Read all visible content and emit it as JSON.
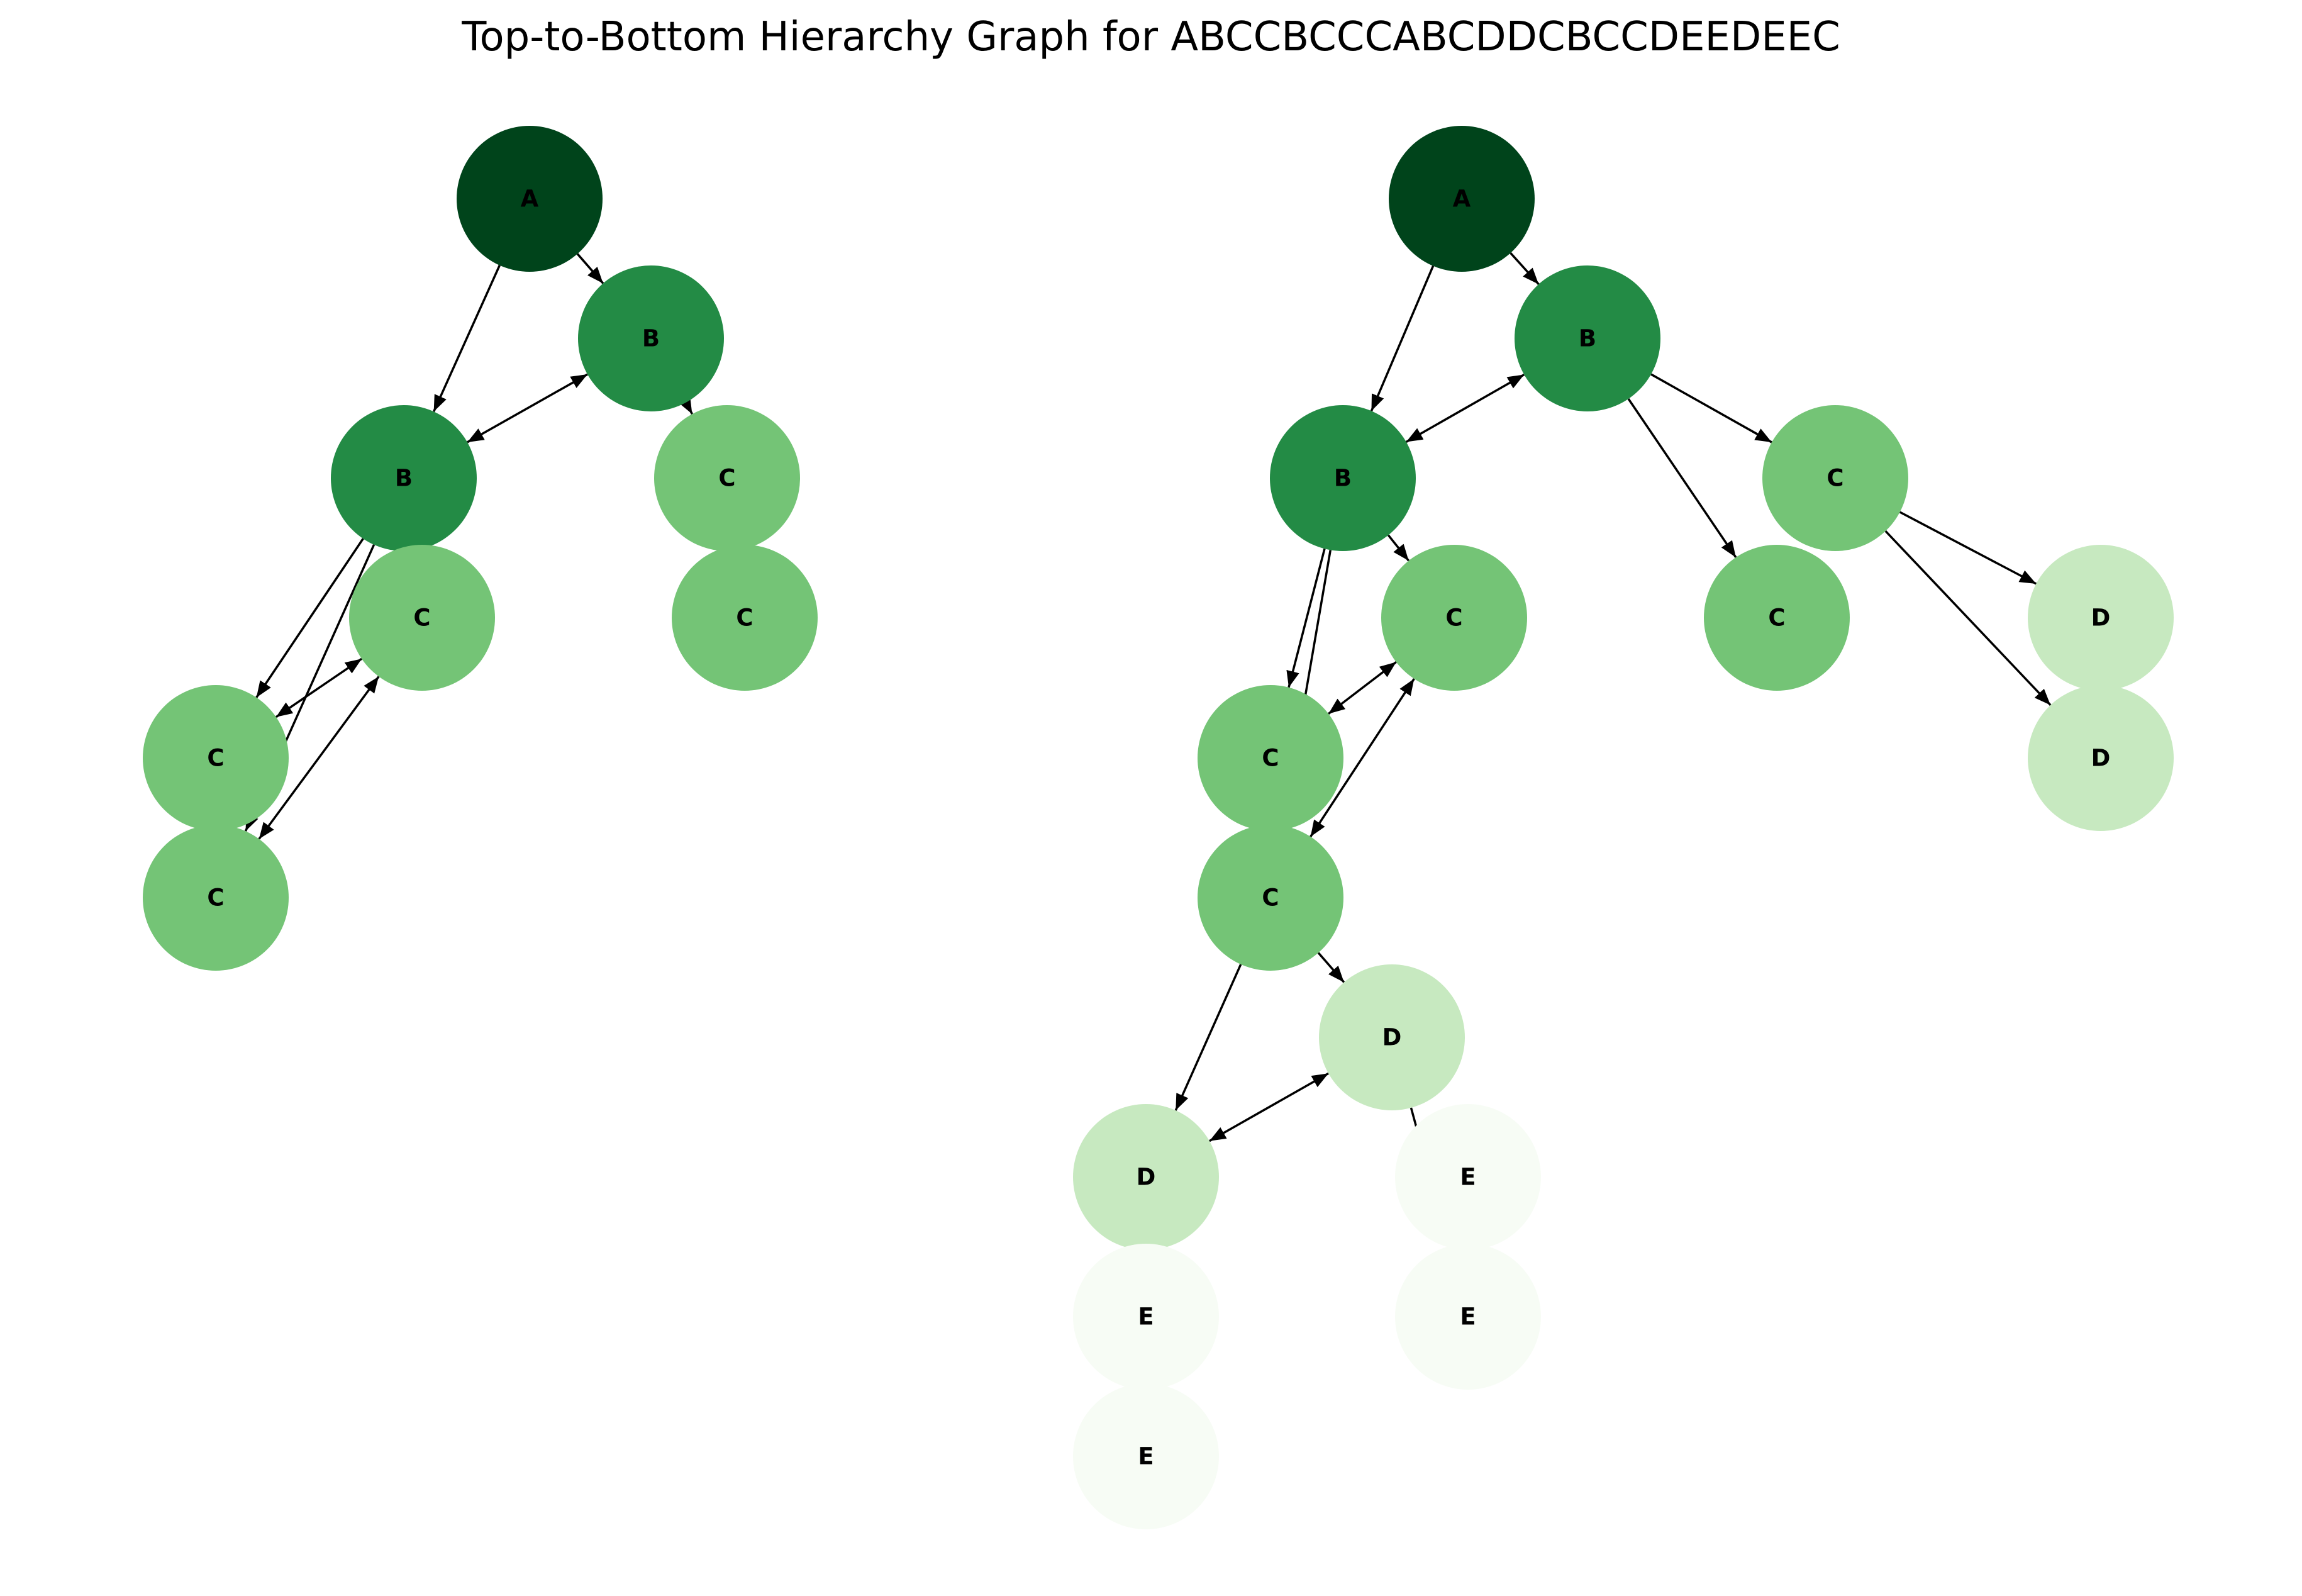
{
  "title": "Top-to-Bottom Hierarchy Graph for ABCCBCCCABCDDCBCCDEEDEEC",
  "colors": {
    "A": "#00441b",
    "B": "#238b45",
    "C": "#74c476",
    "D": "#c7e9c0",
    "E": "#f7fcf5",
    "edge": "#000000",
    "background": "#ffffff"
  },
  "graphs": [
    {
      "name": "left-graph",
      "nodes": [
        {
          "id": "L_A",
          "label": "A"
        },
        {
          "id": "L_B1",
          "label": "B"
        },
        {
          "id": "L_B2",
          "label": "B"
        },
        {
          "id": "L_C1",
          "label": "C"
        },
        {
          "id": "L_C2",
          "label": "C"
        },
        {
          "id": "L_C3",
          "label": "C"
        },
        {
          "id": "L_C4",
          "label": "C"
        },
        {
          "id": "L_C5",
          "label": "C"
        }
      ],
      "edges": [
        {
          "from": "L_A",
          "to": "L_B1",
          "bidirectional": false
        },
        {
          "from": "L_A",
          "to": "L_B2",
          "bidirectional": false
        },
        {
          "from": "L_B2",
          "to": "L_B1",
          "bidirectional": true
        },
        {
          "from": "L_B1",
          "to": "L_C1",
          "bidirectional": false
        },
        {
          "from": "L_B2",
          "to": "L_C4",
          "bidirectional": false
        },
        {
          "from": "L_B2",
          "to": "L_C5",
          "bidirectional": false
        },
        {
          "from": "L_C4",
          "to": "L_C3",
          "bidirectional": true
        },
        {
          "from": "L_C5",
          "to": "L_C3",
          "bidirectional": true
        }
      ]
    },
    {
      "name": "right-graph",
      "nodes": [
        {
          "id": "R_A",
          "label": "A"
        },
        {
          "id": "R_B1",
          "label": "B"
        },
        {
          "id": "R_B2",
          "label": "B"
        },
        {
          "id": "R_C1",
          "label": "C"
        },
        {
          "id": "R_C2",
          "label": "C"
        },
        {
          "id": "R_C3",
          "label": "C"
        },
        {
          "id": "R_C4",
          "label": "C"
        },
        {
          "id": "R_C5",
          "label": "C"
        },
        {
          "id": "R_D1",
          "label": "D"
        },
        {
          "id": "R_D2",
          "label": "D"
        },
        {
          "id": "R_D3",
          "label": "D"
        },
        {
          "id": "R_D4",
          "label": "D"
        },
        {
          "id": "R_E1",
          "label": "E"
        },
        {
          "id": "R_E2",
          "label": "E"
        },
        {
          "id": "R_E3",
          "label": "E"
        },
        {
          "id": "R_E4",
          "label": "E"
        }
      ],
      "edges": [
        {
          "from": "R_A",
          "to": "R_B1",
          "bidirectional": false
        },
        {
          "from": "R_A",
          "to": "R_B2",
          "bidirectional": false
        },
        {
          "from": "R_B2",
          "to": "R_B1",
          "bidirectional": true
        },
        {
          "from": "R_B1",
          "to": "R_C1",
          "bidirectional": false
        },
        {
          "from": "R_B1",
          "to": "R_C2",
          "bidirectional": false
        },
        {
          "from": "R_C1",
          "to": "R_D1",
          "bidirectional": false
        },
        {
          "from": "R_C1",
          "to": "R_D2",
          "bidirectional": false
        },
        {
          "from": "R_B2",
          "to": "R_C3",
          "bidirectional": false
        },
        {
          "from": "R_B2",
          "to": "R_C4",
          "bidirectional": false
        },
        {
          "from": "R_B2",
          "to": "R_C5",
          "bidirectional": false
        },
        {
          "from": "R_C4",
          "to": "R_C3",
          "bidirectional": true
        },
        {
          "from": "R_C5",
          "to": "R_C3",
          "bidirectional": true
        },
        {
          "from": "R_C5",
          "to": "R_D3",
          "bidirectional": false
        },
        {
          "from": "R_C5",
          "to": "R_D4",
          "bidirectional": false
        },
        {
          "from": "R_D4",
          "to": "R_D3",
          "bidirectional": true
        },
        {
          "from": "R_D3",
          "to": "R_E2",
          "bidirectional": false
        }
      ]
    }
  ]
}
